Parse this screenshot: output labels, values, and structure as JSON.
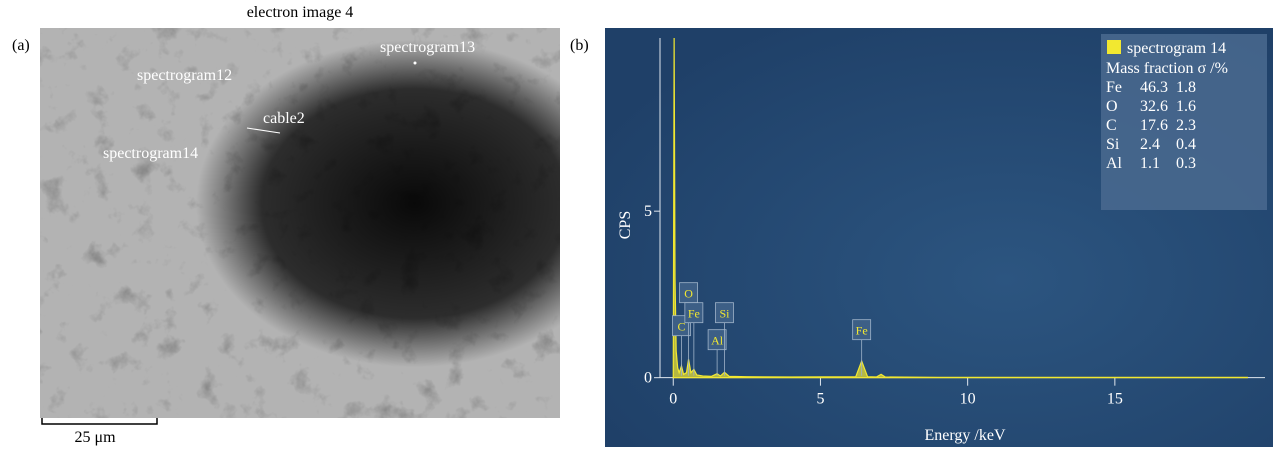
{
  "image_panel": {
    "panel_label": "(a)",
    "title": "electron image 4",
    "labels": [
      "spectrogram12",
      "spectrogram13",
      "cable2",
      "spectrogram14"
    ],
    "scale_bar": "25 μm"
  },
  "chart_data": {
    "type": "line",
    "panel_label": "(b)",
    "x_label": "Energy /keV",
    "y_label": "CPS",
    "xlim": [
      -0.45,
      20.1
    ],
    "ylim": [
      -0.4,
      10.2
    ],
    "xticks": [
      0,
      5,
      10,
      15
    ],
    "yticks": [
      0,
      5
    ],
    "x": [
      0,
      0.03,
      0.06,
      0.1,
      0.15,
      0.2,
      0.28,
      0.35,
      0.45,
      0.52,
      0.6,
      0.7,
      0.8,
      1.0,
      1.3,
      1.49,
      1.6,
      1.74,
      1.9,
      2.5,
      4,
      6.2,
      6.4,
      6.6,
      6.9,
      7.06,
      7.2,
      9,
      12,
      15,
      19.5
    ],
    "series": [
      {
        "name": "spectrogram 14",
        "color": "#f2e830",
        "values": [
          0,
          10.2,
          3,
          0.8,
          0.3,
          0.15,
          0.35,
          0.1,
          0.15,
          0.55,
          0.15,
          0.25,
          0.08,
          0.05,
          0.04,
          0.12,
          0.05,
          0.16,
          0.04,
          0.03,
          0.02,
          0.03,
          0.5,
          0.03,
          0.02,
          0.1,
          0.02,
          0.01,
          0.01,
          0.01,
          0.01
        ]
      }
    ],
    "peak_labels": [
      {
        "label": "C",
        "x": 0.28
      },
      {
        "label": "O",
        "x": 0.52
      },
      {
        "label": "Fe",
        "x": 0.7
      },
      {
        "label": "Al",
        "x": 1.49
      },
      {
        "label": "Si",
        "x": 1.74
      },
      {
        "label": "Fe",
        "x": 6.4
      }
    ],
    "table": {
      "header": "Mass fraction σ /%",
      "rows": [
        [
          "Fe",
          "46.3",
          "1.8"
        ],
        [
          "O",
          "32.6",
          "1.6"
        ],
        [
          "C",
          "17.6",
          "2.3"
        ],
        [
          "Si",
          "2.4",
          "0.4"
        ],
        [
          "Al",
          "1.1",
          "0.3"
        ]
      ]
    }
  }
}
